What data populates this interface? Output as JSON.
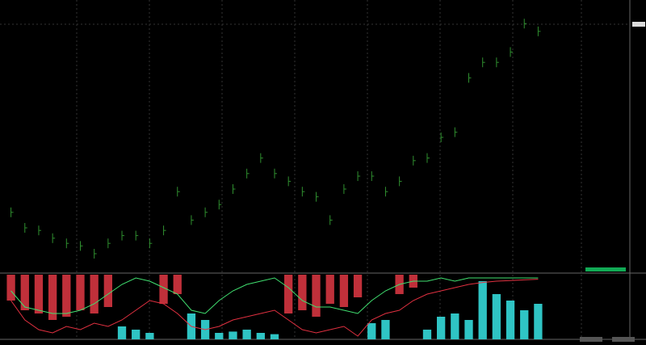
{
  "chart_data": [
    {
      "type": "bar-ticks",
      "color": "#2f8f2f",
      "ylim": [
        0,
        100
      ],
      "values": [
        21,
        15,
        14,
        11,
        9,
        8,
        5,
        9,
        12,
        12,
        9,
        14,
        29,
        18,
        21,
        24,
        30,
        36,
        42,
        36,
        33,
        29,
        27,
        18,
        30,
        35,
        35,
        29,
        33,
        41,
        42,
        50,
        52,
        73,
        79,
        79,
        83,
        94,
        91
      ]
    },
    {
      "type": "histogram",
      "ylim": [
        0,
        100
      ],
      "series": [
        {
          "color": "#c0303a",
          "values": [
            40,
            55,
            60,
            70,
            65,
            55,
            60,
            50,
            0,
            0,
            0,
            45,
            30,
            0,
            0,
            0,
            0,
            0,
            0,
            0,
            60,
            55,
            65,
            45,
            50,
            35,
            0,
            0,
            30,
            20,
            0,
            0,
            0,
            0,
            0,
            0,
            0,
            0,
            0
          ]
        },
        {
          "color": "#2fc4c4",
          "values": [
            0,
            0,
            0,
            0,
            0,
            0,
            0,
            0,
            20,
            15,
            10,
            0,
            0,
            40,
            30,
            10,
            12,
            15,
            10,
            8,
            0,
            0,
            0,
            0,
            0,
            0,
            25,
            30,
            0,
            0,
            15,
            35,
            40,
            30,
            90,
            70,
            60,
            45,
            55
          ]
        }
      ],
      "lines": [
        {
          "color": "#40e070",
          "values": [
            75,
            50,
            45,
            40,
            40,
            45,
            55,
            70,
            85,
            95,
            90,
            80,
            70,
            45,
            40,
            60,
            75,
            85,
            90,
            95,
            80,
            60,
            50,
            50,
            45,
            40,
            60,
            75,
            85,
            90,
            90,
            95,
            90,
            95,
            95,
            95,
            95,
            95,
            95
          ]
        },
        {
          "color": "#e03040",
          "values": [
            60,
            30,
            15,
            10,
            20,
            15,
            25,
            20,
            30,
            45,
            60,
            55,
            40,
            20,
            15,
            20,
            30,
            35,
            40,
            45,
            30,
            15,
            10,
            15,
            20,
            5,
            30,
            40,
            45,
            60,
            70,
            75,
            80,
            85,
            88,
            90,
            91,
            92,
            93
          ]
        }
      ]
    }
  ]
}
